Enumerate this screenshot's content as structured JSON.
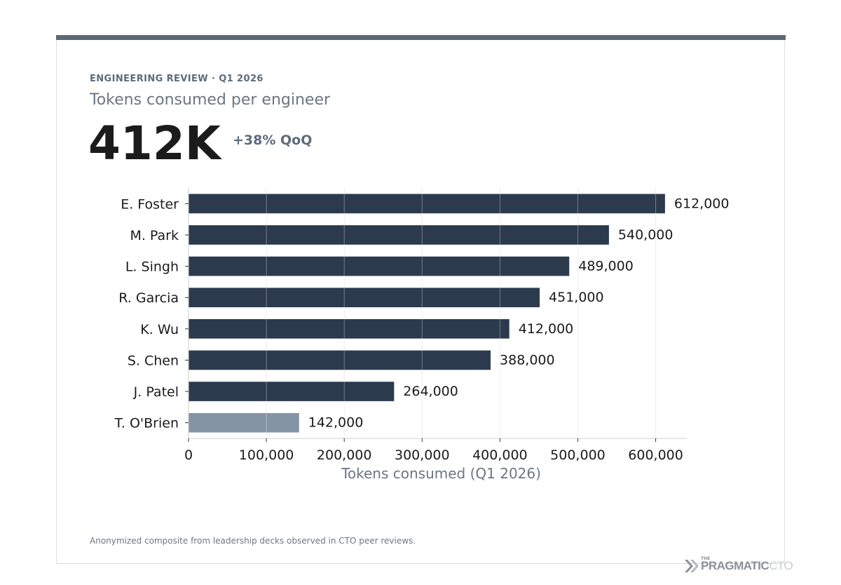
{
  "header": {
    "kicker": "ENGINEERING REVIEW · Q1 2026",
    "subtitle": "Tokens consumed per engineer",
    "kpi_value": "412K",
    "kpi_delta": "+38% QoQ"
  },
  "footnote": "Anonymized composite from leadership decks observed in CTO peer reviews.",
  "logo": {
    "small": "THE",
    "main": "PRAGMATIC",
    "accent": "CTO"
  },
  "colors": {
    "bar": "#2c3a4d",
    "bar_highlight": "#8594a5",
    "accent_bar": "#5a6878",
    "grid": "#e6e6e6",
    "axis_label": "#6b7683"
  },
  "chart_data": {
    "type": "bar",
    "orientation": "horizontal",
    "categories": [
      "E. Foster",
      "M. Park",
      "L. Singh",
      "R. Garcia",
      "K. Wu",
      "S. Chen",
      "J. Patel",
      "T. O'Brien"
    ],
    "values": [
      612000,
      540000,
      489000,
      451000,
      412000,
      388000,
      264000,
      142000
    ],
    "value_labels": [
      "612,000",
      "540,000",
      "489,000",
      "451,000",
      "412,000",
      "388,000",
      "264,000",
      "142,000"
    ],
    "highlighted_category": "T. O'Brien",
    "xlabel": "Tokens consumed (Q1 2026)",
    "ylabel": "",
    "xlim": [
      0,
      640000
    ],
    "xticks": [
      0,
      100000,
      200000,
      300000,
      400000,
      500000,
      600000
    ],
    "xtick_labels": [
      "0",
      "100,000",
      "200,000",
      "300,000",
      "400,000",
      "500,000",
      "600,000"
    ],
    "grid": "vertical"
  }
}
